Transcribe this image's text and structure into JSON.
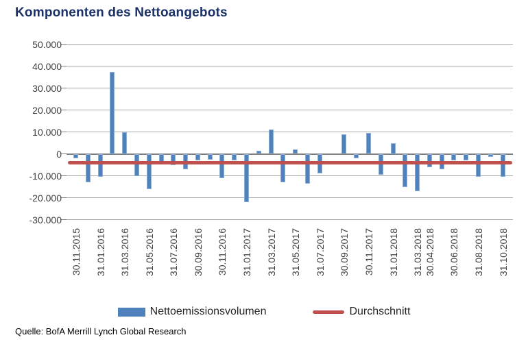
{
  "source_note": "Quelle: BofA Merrill Lynch Global Research",
  "colors": {
    "title": "#1b3168",
    "bar": "#4f81bd",
    "bar_edge": "#8fafd5",
    "line": "#c0504d",
    "grid": "#a8a8a8",
    "zero_axis": "#7f7f7f",
    "axis_text": "#3f3f3f"
  },
  "chart_data": {
    "type": "bar",
    "title": "Komponenten des Nettoangebots",
    "xlabel": "",
    "ylabel": "",
    "grid": true,
    "legend_position": "bottom",
    "y_axis": {
      "min": -30000,
      "max": 50000,
      "step": 10000,
      "tick_labels": [
        "50.000",
        "40.000",
        "30.000",
        "20.000",
        "10.000",
        "0",
        "-10.000",
        "-20.000",
        "-30.000"
      ]
    },
    "x_tick_labels": [
      "30.11.2015",
      "31.01.2016",
      "31.03.2016",
      "31.05.2016",
      "31.07.2016",
      "30.09.2016",
      "30.11.2016",
      "31.01.2017",
      "31.03.2017",
      "31.05.2017",
      "31.07.2017",
      "30.09.2017",
      "30.11.2017",
      "31.01.2018",
      "31.03.2018",
      "30.04.2018",
      "30.06.2018",
      "31.08.2018",
      "31.10.2018"
    ],
    "series": [
      {
        "name": "Nettoemissionsvolumen",
        "type": "bar",
        "points": [
          {
            "date_label": "30.11.2015",
            "value": -2000
          },
          {
            "date_label": "",
            "value": -13000
          },
          {
            "date_label": "31.01.2016",
            "value": -10500
          },
          {
            "date_label": "",
            "value": 37500
          },
          {
            "date_label": "31.03.2016",
            "value": 10000
          },
          {
            "date_label": "",
            "value": -10000
          },
          {
            "date_label": "31.05.2016",
            "value": -16000
          },
          {
            "date_label": "",
            "value": -3500
          },
          {
            "date_label": "31.07.2016",
            "value": -5000
          },
          {
            "date_label": "",
            "value": -7000
          },
          {
            "date_label": "30.09.2016",
            "value": -3000
          },
          {
            "date_label": "",
            "value": -2500
          },
          {
            "date_label": "30.11.2016",
            "value": -11000
          },
          {
            "date_label": "",
            "value": -3000
          },
          {
            "date_label": "31.01.2017",
            "value": -22000
          },
          {
            "date_label": "",
            "value": 1500
          },
          {
            "date_label": "31.03.2017",
            "value": 11000
          },
          {
            "date_label": "",
            "value": -13000
          },
          {
            "date_label": "31.05.2017",
            "value": 2000
          },
          {
            "date_label": "",
            "value": -13500
          },
          {
            "date_label": "31.07.2017",
            "value": -9000
          },
          {
            "date_label": "",
            "value": 0
          },
          {
            "date_label": "30.09.2017",
            "value": 9000
          },
          {
            "date_label": "",
            "value": -2000
          },
          {
            "date_label": "30.11.2017",
            "value": 9500
          },
          {
            "date_label": "",
            "value": -9500
          },
          {
            "date_label": "31.01.2018",
            "value": 5000
          },
          {
            "date_label": "",
            "value": -15000
          },
          {
            "date_label": "31.03.2018",
            "value": -17000
          },
          {
            "date_label": "30.04.2018",
            "value": -6000
          },
          {
            "date_label": "",
            "value": -7000
          },
          {
            "date_label": "30.06.2018",
            "value": -3000
          },
          {
            "date_label": "",
            "value": -3000
          },
          {
            "date_label": "31.08.2018",
            "value": -10500
          },
          {
            "date_label": "",
            "value": -1500
          },
          {
            "date_label": "31.10.2018",
            "value": -10500
          }
        ]
      },
      {
        "name": "Durchschnitt",
        "type": "line",
        "value": -4000
      }
    ]
  }
}
